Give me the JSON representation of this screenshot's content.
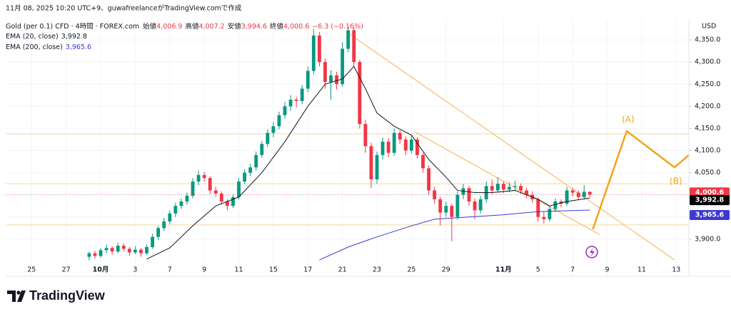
{
  "header": {
    "created": "11月 08, 2025 10:20 UTC+9、guwafreelanceがTradingView.comで作成",
    "symbol": "Gold (per 0.1) CFD · 4時間 · FOREX.com",
    "ohlc": [
      {
        "label": "始値",
        "value": "4,006.9"
      },
      {
        "label": "高値",
        "value": "4,007.2"
      },
      {
        "label": "安値",
        "value": "3,994.6"
      },
      {
        "label": "終値",
        "value": "4,000.6"
      }
    ],
    "change": "−6.3 (−0.16%)"
  },
  "chart_data": {
    "type": "candlestick",
    "currency": "USD",
    "up_color": "#089981",
    "down_color": "#f23645",
    "grid": true,
    "xlim": [
      -14.5,
      104.2
    ],
    "ylim": [
      3845,
      4392
    ],
    "xticks": [
      {
        "value": -10,
        "label": "25"
      },
      {
        "value": -4,
        "label": "27"
      },
      {
        "value": 2,
        "label": "10月"
      },
      {
        "value": 8,
        "label": "3"
      },
      {
        "value": 14,
        "label": "7"
      },
      {
        "value": 20,
        "label": "9"
      },
      {
        "value": 26,
        "label": "11"
      },
      {
        "value": 32,
        "label": "15"
      },
      {
        "value": 38,
        "label": "17"
      },
      {
        "value": 44,
        "label": "21"
      },
      {
        "value": 50,
        "label": "23"
      },
      {
        "value": 56,
        "label": "25"
      },
      {
        "value": 62,
        "label": "29"
      },
      {
        "value": 72,
        "label": "11月"
      },
      {
        "value": 78,
        "label": "5"
      },
      {
        "value": 84,
        "label": "7"
      },
      {
        "value": 90,
        "label": "9"
      },
      {
        "value": 96,
        "label": "11"
      },
      {
        "value": 102,
        "label": "13"
      }
    ],
    "yticks": [
      {
        "value": 3900,
        "label": "3,900.0"
      },
      {
        "value": 3950,
        "label": "3,950.0"
      },
      {
        "value": 4000,
        "label": "4,000.0"
      },
      {
        "value": 4050,
        "label": "4,050.0"
      },
      {
        "value": 4100,
        "label": "4,100.0"
      },
      {
        "value": 4150,
        "label": "4,150.0"
      },
      {
        "value": 4200,
        "label": "4,200.0"
      },
      {
        "value": 4250,
        "label": "4,250.0"
      },
      {
        "value": 4300,
        "label": "4,300.0"
      },
      {
        "value": 4350,
        "label": "4,350.0"
      }
    ],
    "candles": [
      [
        3860,
        3872,
        3852,
        3868
      ],
      [
        3868,
        3874,
        3856,
        3862
      ],
      [
        3862,
        3880,
        3858,
        3875
      ],
      [
        3875,
        3888,
        3868,
        3880
      ],
      [
        3880,
        3884,
        3865,
        3872
      ],
      [
        3872,
        3892,
        3868,
        3885
      ],
      [
        3885,
        3890,
        3872,
        3878
      ],
      [
        3878,
        3882,
        3862,
        3870
      ],
      [
        3870,
        3884,
        3866,
        3876
      ],
      [
        3876,
        3880,
        3860,
        3868
      ],
      [
        3868,
        3888,
        3864,
        3882
      ],
      [
        3882,
        3912,
        3878,
        3905
      ],
      [
        3905,
        3930,
        3898,
        3925
      ],
      [
        3925,
        3948,
        3918,
        3940
      ],
      [
        3940,
        3965,
        3934,
        3958
      ],
      [
        3958,
        3982,
        3950,
        3975
      ],
      [
        3975,
        3992,
        3968,
        3985
      ],
      [
        3985,
        4005,
        3978,
        3998
      ],
      [
        3998,
        4038,
        3992,
        4030
      ],
      [
        4030,
        4055,
        4022,
        4045
      ],
      [
        4045,
        4052,
        4030,
        4038
      ],
      [
        4038,
        4042,
        4002,
        4010
      ],
      [
        4010,
        4018,
        3995,
        4003
      ],
      [
        4003,
        4008,
        3978,
        3985
      ],
      [
        3985,
        3990,
        3965,
        3975
      ],
      [
        3975,
        4002,
        3970,
        3995
      ],
      [
        3995,
        4038,
        3990,
        4030
      ],
      [
        4030,
        4058,
        4024,
        4050
      ],
      [
        4050,
        4070,
        4042,
        4062
      ],
      [
        4062,
        4098,
        4055,
        4090
      ],
      [
        4090,
        4122,
        4084,
        4115
      ],
      [
        4115,
        4148,
        4108,
        4140
      ],
      [
        4140,
        4165,
        4130,
        4155
      ],
      [
        4155,
        4188,
        4148,
        4180
      ],
      [
        4180,
        4210,
        4172,
        4200
      ],
      [
        4200,
        4225,
        4190,
        4215
      ],
      [
        4215,
        4222,
        4198,
        4212
      ],
      [
        4212,
        4248,
        4205,
        4240
      ],
      [
        4240,
        4290,
        4232,
        4280
      ],
      [
        4280,
        4375,
        4272,
        4360
      ],
      [
        4360,
        4368,
        4290,
        4300
      ],
      [
        4300,
        4308,
        4240,
        4255
      ],
      [
        4255,
        4282,
        4215,
        4270
      ],
      [
        4270,
        4278,
        4238,
        4250
      ],
      [
        4250,
        4345,
        4244,
        4330
      ],
      [
        4330,
        4381,
        4322,
        4372
      ],
      [
        4372,
        4378,
        4290,
        4300
      ],
      [
        4300,
        4305,
        4150,
        4160
      ],
      [
        4160,
        4170,
        4095,
        4110
      ],
      [
        4110,
        4118,
        4015,
        4035
      ],
      [
        4035,
        4098,
        4025,
        4090
      ],
      [
        4090,
        4130,
        4080,
        4120
      ],
      [
        4120,
        4128,
        4085,
        4095
      ],
      [
        4095,
        4150,
        4088,
        4140
      ],
      [
        4140,
        4146,
        4115,
        4125
      ],
      [
        4125,
        4132,
        4090,
        4100
      ],
      [
        4100,
        4135,
        4094,
        4125
      ],
      [
        4125,
        4130,
        4082,
        4090
      ],
      [
        4090,
        4095,
        4050,
        4060
      ],
      [
        4060,
        4066,
        4000,
        4010
      ],
      [
        4010,
        4018,
        3980,
        3990
      ],
      [
        3990,
        3996,
        3930,
        3960
      ],
      [
        3960,
        3985,
        3950,
        3975
      ],
      [
        3975,
        3980,
        3895,
        3950
      ],
      [
        3950,
        4008,
        3944,
        4000
      ],
      [
        4000,
        4025,
        3990,
        4015
      ],
      [
        4015,
        4020,
        3975,
        3985
      ],
      [
        3985,
        3992,
        3945,
        3965
      ],
      [
        3965,
        3998,
        3958,
        3990
      ],
      [
        3990,
        4030,
        3982,
        4020
      ],
      [
        4020,
        4035,
        4002,
        4010
      ],
      [
        4010,
        4040,
        4005,
        4025
      ],
      [
        4025,
        4030,
        4004,
        4012
      ],
      [
        4012,
        4028,
        4006,
        4018
      ],
      [
        4018,
        4032,
        4010,
        4020
      ],
      [
        4020,
        4026,
        4002,
        4010
      ],
      [
        4010,
        4016,
        3992,
        4000
      ],
      [
        4000,
        4008,
        3982,
        3990
      ],
      [
        3990,
        3994,
        3940,
        3950
      ],
      [
        3950,
        3962,
        3935,
        3945
      ],
      [
        3945,
        3975,
        3940,
        3968
      ],
      [
        3968,
        3992,
        3962,
        3985
      ],
      [
        3985,
        3990,
        3972,
        3980
      ],
      [
        3980,
        4018,
        3975,
        4010
      ],
      [
        4010,
        4016,
        3996,
        4005
      ],
      [
        4005,
        4010,
        3988,
        3995
      ],
      [
        3995,
        4022,
        3990,
        4006.9
      ],
      [
        4006.9,
        4007.2,
        3994.6,
        4000.6
      ]
    ],
    "series": [
      {
        "name": "EMA (20, close)",
        "color": "#131722",
        "last_label": "3,992.8",
        "x": [
          10,
          14,
          18,
          22,
          26,
          30,
          34,
          38,
          41,
          44,
          46,
          48,
          50,
          53,
          56,
          59,
          62,
          64,
          67,
          70,
          74,
          78,
          80,
          83,
          87
        ],
        "values": [
          3855,
          3880,
          3930,
          3975,
          3995,
          4050,
          4120,
          4200,
          4250,
          4262,
          4290,
          4240,
          4185,
          4155,
          4135,
          4080,
          4040,
          4010,
          4005,
          4005,
          4010,
          3990,
          3975,
          3985,
          3992.8
        ]
      },
      {
        "name": "EMA (200, close)",
        "color": "#3b3bd1",
        "last_label": "3,965.6",
        "x": [
          40,
          45,
          50,
          56,
          60,
          66,
          72,
          78,
          87
        ],
        "values": [
          3853,
          3882,
          3905,
          3930,
          3945,
          3950,
          3955,
          3962,
          3965.6
        ]
      }
    ],
    "hlines": [
      {
        "value": 4138,
        "color": "#f7d79a"
      },
      {
        "value": 4025,
        "color": "#f7d79a"
      },
      {
        "value": 3932,
        "color": "#f7d79a"
      }
    ],
    "price_tags": [
      {
        "value": 4000.6,
        "label": "4,000.6",
        "color": "#f23645"
      },
      {
        "value": 3992.8,
        "label": "3,992.8",
        "color": "#000000"
      },
      {
        "value": 3965.6,
        "label": "3,965.6",
        "color": "#3b3bd1"
      }
    ],
    "trend_lines": [
      {
        "color": "#f7b24a",
        "x": [
          44.7,
          101.7
        ],
        "values": [
          4368,
          3853
        ]
      },
      {
        "color": "#f7b24a",
        "x": [
          56.5,
          88.7
        ],
        "values": [
          4143,
          3910
        ]
      }
    ],
    "wave": {
      "color": "#f7a21b",
      "x": [
        87.5,
        93.4,
        101.7,
        104.2
      ],
      "values": [
        3922,
        4144,
        4062,
        4090
      ],
      "labels": [
        {
          "index": 1,
          "text": "(A)"
        },
        {
          "index": 2,
          "text": "(B)"
        }
      ]
    }
  },
  "footer": {
    "brand": "TradingView"
  }
}
